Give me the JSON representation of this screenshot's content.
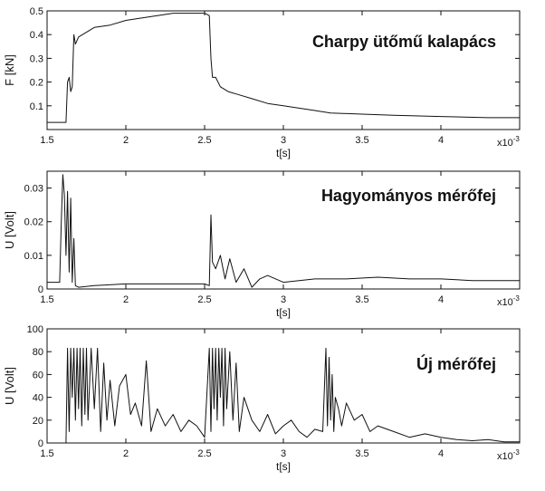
{
  "colors": {
    "line": "#111111",
    "axes": "#111111",
    "background": "#ffffff"
  },
  "chart_data": [
    {
      "type": "line",
      "annotation": "Charpy ütőmű kalapács",
      "ylabel": "F [kN]",
      "xlabel": "t[s]",
      "x_exponent_base": "x10",
      "x_exponent": "-3",
      "xlim": [
        1.5,
        4.5
      ],
      "ylim": [
        0,
        0.5
      ],
      "xticks": [
        1.5,
        2,
        2.5,
        3,
        3.5,
        4
      ],
      "xtick_labels": [
        "1.5",
        "2",
        "2.5",
        "3",
        "3.5",
        "4"
      ],
      "yticks": [
        0.1,
        0.2,
        0.3,
        0.4,
        0.5
      ],
      "ytick_labels": [
        "0.1",
        "0.2",
        "0.3",
        "0.4",
        "0.5"
      ],
      "grid": false,
      "series": [
        {
          "x": [
            1.5,
            1.62,
            1.63,
            1.64,
            1.65,
            1.66,
            1.67,
            1.68,
            1.7,
            1.75,
            1.8,
            1.9,
            2.0,
            2.1,
            2.2,
            2.3,
            2.4,
            2.5,
            2.53,
            2.54,
            2.55,
            2.57,
            2.6,
            2.65,
            2.7,
            2.8,
            2.9,
            3.0,
            3.1,
            3.2,
            3.3,
            3.5,
            3.7,
            4.0,
            4.3,
            4.5
          ],
          "y": [
            0.03,
            0.03,
            0.2,
            0.22,
            0.16,
            0.18,
            0.4,
            0.36,
            0.39,
            0.41,
            0.43,
            0.44,
            0.46,
            0.47,
            0.48,
            0.49,
            0.49,
            0.49,
            0.48,
            0.3,
            0.22,
            0.22,
            0.18,
            0.16,
            0.15,
            0.13,
            0.11,
            0.1,
            0.09,
            0.08,
            0.07,
            0.065,
            0.06,
            0.055,
            0.05,
            0.05
          ]
        }
      ]
    },
    {
      "type": "line",
      "annotation": "Hagyományos mérőfej",
      "ylabel": "U [Volt]",
      "xlabel": "t[s]",
      "x_exponent_base": "x10",
      "x_exponent": "-3",
      "xlim": [
        1.5,
        4.5
      ],
      "ylim": [
        0,
        0.035
      ],
      "xticks": [
        1.5,
        2,
        2.5,
        3,
        3.5,
        4
      ],
      "xtick_labels": [
        "1.5",
        "2",
        "2.5",
        "3",
        "3.5",
        "4"
      ],
      "yticks": [
        0,
        0.01,
        0.02,
        0.03
      ],
      "ytick_labels": [
        "0",
        "0.01",
        "0.02",
        "0.03"
      ],
      "grid": false,
      "series": [
        {
          "x": [
            1.5,
            1.58,
            1.59,
            1.6,
            1.61,
            1.62,
            1.63,
            1.64,
            1.65,
            1.66,
            1.67,
            1.68,
            1.7,
            1.8,
            2.0,
            2.5,
            2.53,
            2.54,
            2.55,
            2.57,
            2.6,
            2.63,
            2.66,
            2.7,
            2.75,
            2.8,
            2.85,
            2.9,
            3.0,
            3.2,
            3.4,
            3.6,
            3.8,
            4.0,
            4.2,
            4.5
          ],
          "y": [
            0.002,
            0.002,
            0.02,
            0.034,
            0.028,
            0.01,
            0.029,
            0.005,
            0.027,
            0.002,
            0.015,
            0.001,
            0.0005,
            0.001,
            0.0015,
            0.0015,
            0.001,
            0.022,
            0.008,
            0.006,
            0.01,
            0.003,
            0.009,
            0.002,
            0.006,
            0.0005,
            0.003,
            0.004,
            0.002,
            0.003,
            0.003,
            0.0035,
            0.003,
            0.003,
            0.0025,
            0.0025
          ]
        }
      ]
    },
    {
      "type": "line",
      "annotation": "Új mérőfej",
      "ylabel": "U [Volt]",
      "xlabel": "t[s]",
      "x_exponent_base": "x10",
      "x_exponent": "-3",
      "xlim": [
        1.5,
        4.5
      ],
      "ylim": [
        0,
        100
      ],
      "xticks": [
        1.5,
        2,
        2.5,
        3,
        3.5,
        4
      ],
      "xtick_labels": [
        "1.5",
        "2",
        "2.5",
        "3",
        "3.5",
        "4"
      ],
      "yticks": [
        0,
        20,
        40,
        60,
        80,
        100
      ],
      "ytick_labels": [
        "0",
        "20",
        "40",
        "60",
        "80",
        "100"
      ],
      "grid": false,
      "series": [
        {
          "x": [
            1.5,
            1.6,
            1.62,
            1.63,
            1.64,
            1.65,
            1.66,
            1.67,
            1.68,
            1.69,
            1.7,
            1.71,
            1.72,
            1.73,
            1.74,
            1.75,
            1.76,
            1.78,
            1.8,
            1.82,
            1.84,
            1.86,
            1.88,
            1.9,
            1.93,
            1.96,
            2.0,
            2.03,
            2.06,
            2.1,
            2.13,
            2.16,
            2.2,
            2.25,
            2.3,
            2.35,
            2.4,
            2.45,
            2.5,
            2.53,
            2.54,
            2.55,
            2.56,
            2.57,
            2.58,
            2.59,
            2.6,
            2.61,
            2.62,
            2.63,
            2.64,
            2.66,
            2.68,
            2.7,
            2.72,
            2.75,
            2.8,
            2.85,
            2.9,
            2.95,
            3.0,
            3.05,
            3.1,
            3.15,
            3.2,
            3.25,
            3.27,
            3.28,
            3.29,
            3.3,
            3.31,
            3.32,
            3.33,
            3.35,
            3.37,
            3.4,
            3.45,
            3.5,
            3.55,
            3.6,
            3.7,
            3.8,
            3.9,
            4.0,
            4.1,
            4.2,
            4.3,
            4.4,
            4.5
          ],
          "y": [
            0,
            0,
            0,
            83,
            10,
            83,
            40,
            83,
            20,
            83,
            30,
            83,
            15,
            83,
            25,
            83,
            20,
            83,
            30,
            83,
            10,
            70,
            20,
            55,
            15,
            50,
            60,
            25,
            35,
            15,
            72,
            10,
            30,
            15,
            25,
            10,
            20,
            15,
            5,
            83,
            10,
            83,
            30,
            83,
            20,
            83,
            40,
            83,
            15,
            83,
            30,
            80,
            20,
            70,
            10,
            40,
            20,
            10,
            25,
            8,
            15,
            20,
            10,
            5,
            12,
            10,
            83,
            15,
            75,
            20,
            60,
            10,
            40,
            30,
            15,
            35,
            20,
            25,
            10,
            15,
            10,
            5,
            8,
            5,
            3,
            2,
            3,
            1,
            1
          ]
        }
      ]
    }
  ]
}
